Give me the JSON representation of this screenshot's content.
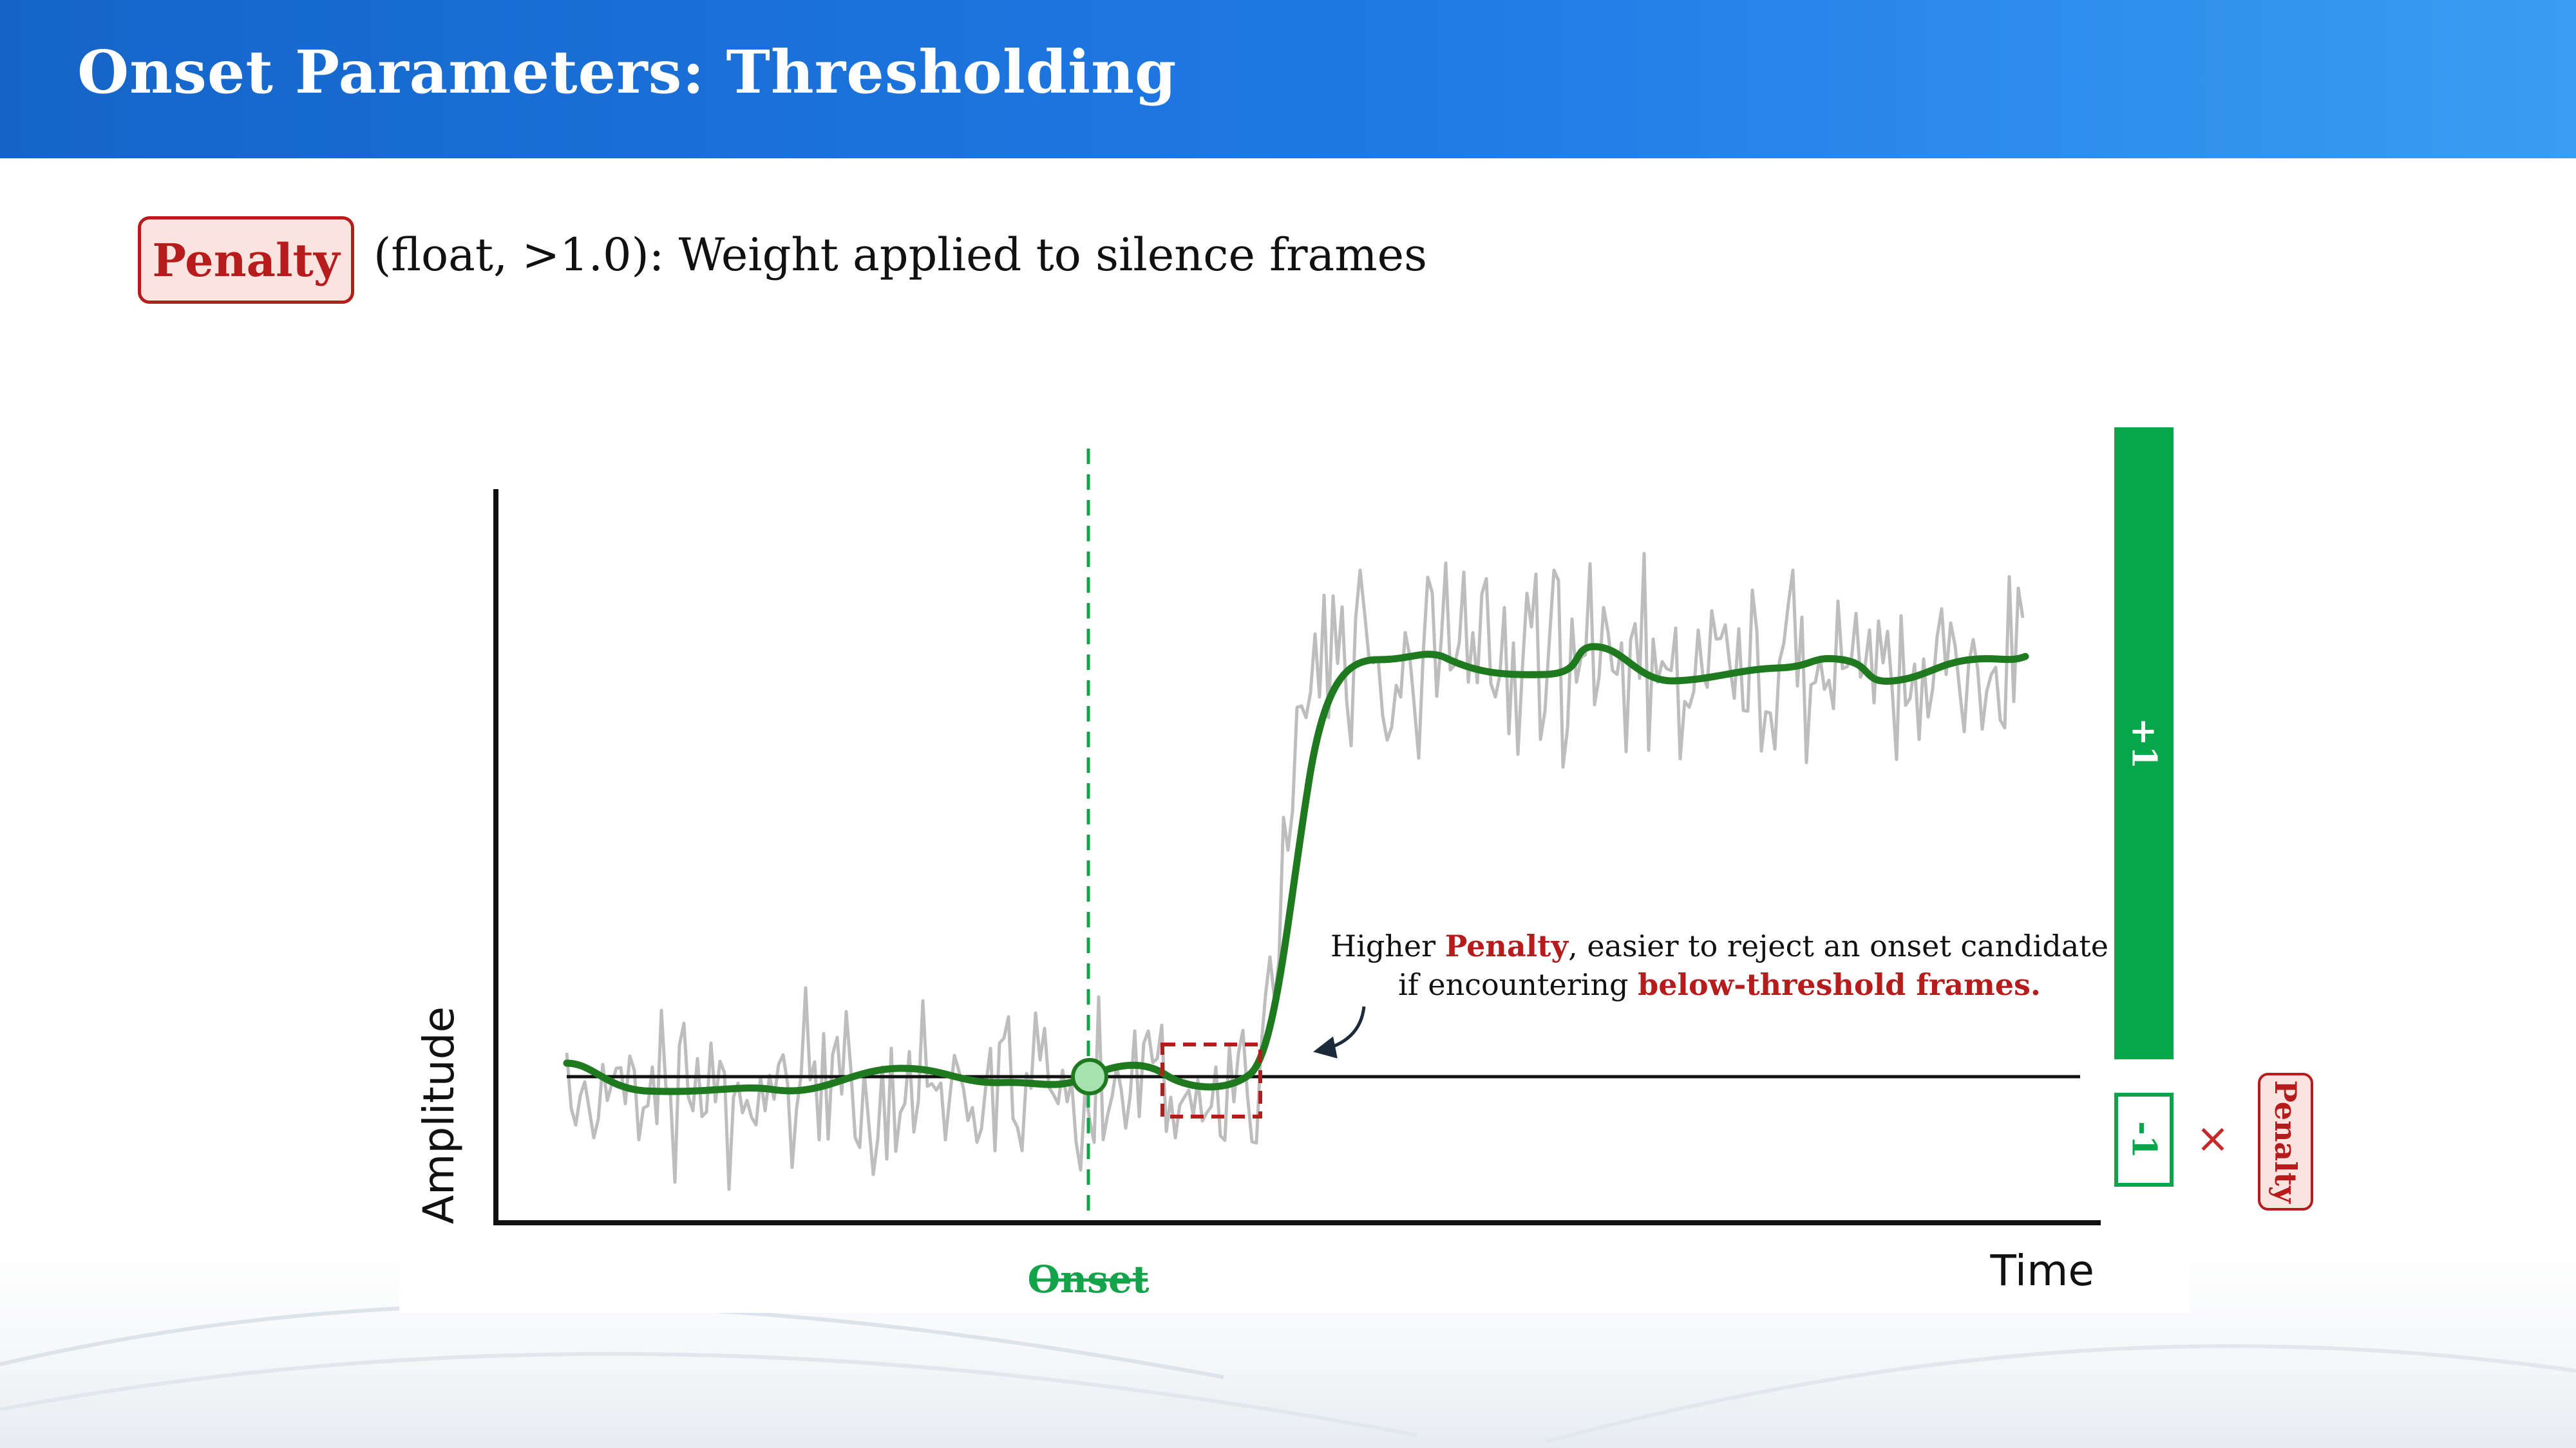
{
  "header": {
    "title": "Onset Parameters: Thresholding"
  },
  "parameter": {
    "badge_label": "Penalty",
    "description": "(float, >1.0): Weight applied to silence frames"
  },
  "diagram": {
    "y_axis_label": "Amplitude",
    "x_axis_label": "Time",
    "onset_label": "Onset",
    "annotation": {
      "line1_pre": "Higher ",
      "line1_highlight": "Penalty",
      "line1_post": ", easier to reject an onset candidate",
      "line2_pre": "if encountering ",
      "line2_highlight": "below-threshold frames."
    },
    "score_positive": "+1",
    "score_negative": "-1",
    "multiply_symbol": "×",
    "penalty_tag": "Penalty"
  },
  "colors": {
    "header_blue": "#1f7ae6",
    "accent_red": "#b71c1c",
    "badge_fill": "#fbe4df",
    "green": "#06a74a",
    "curve_green": "#1f7a1f",
    "noise_gray": "#bdbdbd"
  }
}
